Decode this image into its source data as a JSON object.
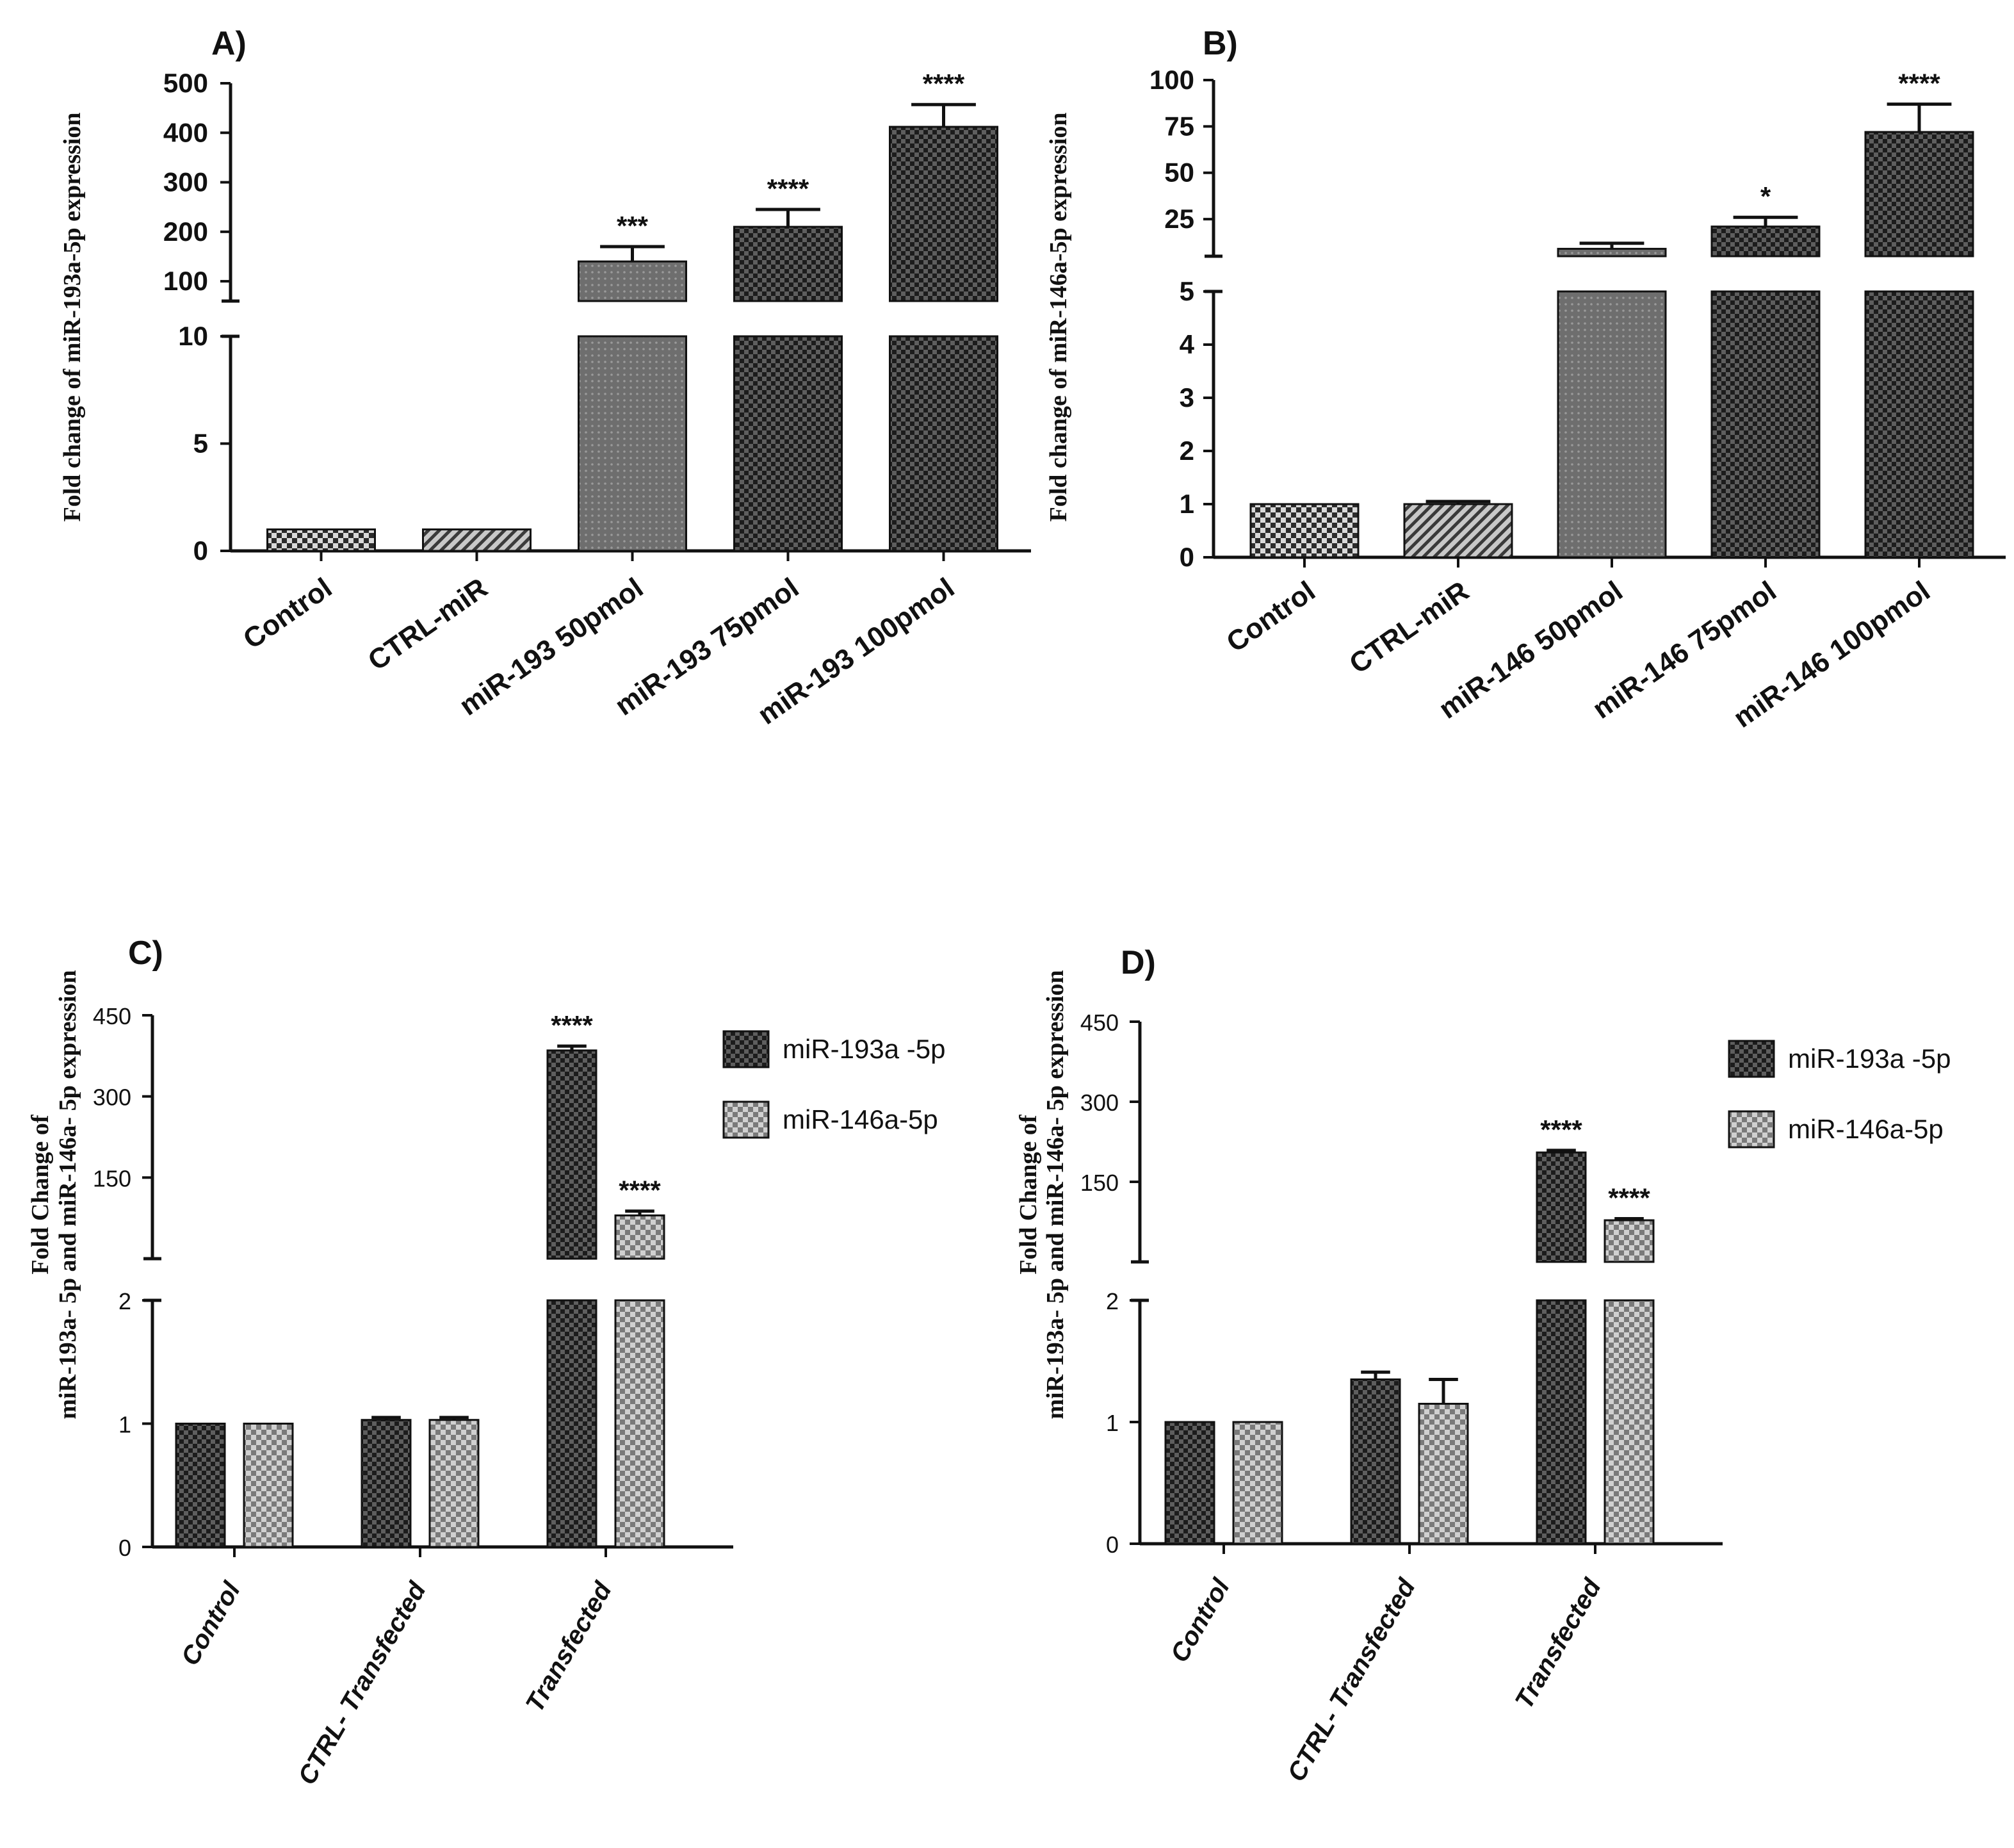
{
  "figure": {
    "panels": [
      "A)",
      "B)",
      "C)",
      "D)"
    ]
  },
  "colors": {
    "dark_bar": "#1f1f1f",
    "mid_bar": "#6a6a6a",
    "light_check": "#bdbdbd",
    "axis": "#111111"
  },
  "chart_data": [
    {
      "panel": "A)",
      "type": "bar",
      "title": "",
      "ylabel": "Fold change of miR-193a-5p expression",
      "xlabel": "",
      "categories": [
        "Control",
        "CTRL-miR",
        "miR-193 50pmol",
        "miR-193 75pmol",
        "miR-193 100pmol"
      ],
      "values": [
        1,
        1,
        140,
        210,
        412
      ],
      "errors": [
        0,
        0,
        30,
        35,
        45
      ],
      "significance": [
        "",
        "",
        "***",
        "****",
        "****"
      ],
      "patterns": [
        "check",
        "stripe",
        "dots",
        "darkcheck",
        "darkcheck"
      ],
      "axis_break": {
        "lower_ylim": [
          0,
          10
        ],
        "upper_ylim": [
          50,
          500
        ]
      },
      "lower_ticks": [
        "0",
        "5",
        "10"
      ],
      "upper_ticks": [
        "100",
        "200",
        "300",
        "400",
        "500"
      ],
      "upper_tick_values": [
        100,
        200,
        300,
        400,
        500
      ]
    },
    {
      "panel": "B)",
      "type": "bar",
      "title": "",
      "ylabel": "Fold change of miR-146a-5p expression",
      "xlabel": "",
      "categories": [
        "Control",
        "CTRL-miR",
        "miR-146 50pmol",
        "miR-146 75pmol",
        "miR-146 100pmol"
      ],
      "values": [
        1,
        1,
        9,
        21,
        72
      ],
      "errors": [
        0,
        0.05,
        3,
        5,
        15
      ],
      "significance": [
        "",
        "",
        "",
        "*",
        "****"
      ],
      "patterns": [
        "check",
        "stripe",
        "dots",
        "darkcheck",
        "darkcheck"
      ],
      "axis_break": {
        "lower_ylim": [
          0,
          5
        ],
        "upper_ylim": [
          5,
          100
        ]
      },
      "lower_ticks": [
        "0",
        "1",
        "2",
        "3",
        "4",
        "5"
      ],
      "upper_ticks": [
        "25",
        "50",
        "75",
        "100"
      ],
      "upper_tick_values": [
        25,
        50,
        75,
        100
      ]
    },
    {
      "panel": "C)",
      "type": "bar",
      "title": "",
      "ylabel_line1": "Fold Change of",
      "ylabel_line2": "miR-193a- 5p and miR-146a- 5p expression",
      "categories": [
        "Control",
        "CTRL- Transfected",
        "Transfected"
      ],
      "series": [
        {
          "name": "miR-193a -5p",
          "values": [
            1,
            1.03,
            385
          ],
          "errors": [
            0,
            0.02,
            8
          ],
          "significance": [
            "",
            "",
            "****"
          ]
        },
        {
          "name": "miR-146a-5p",
          "values": [
            1,
            1.03,
            80
          ],
          "errors": [
            0,
            0.02,
            8
          ],
          "significance": [
            "",
            "",
            "****"
          ]
        }
      ],
      "axis_break": {
        "lower_ylim": [
          0,
          2
        ],
        "upper_ylim": [
          0,
          450
        ]
      },
      "lower_ticks": [
        "0",
        "1",
        "2"
      ],
      "upper_ticks": [
        "150",
        "300",
        "450"
      ],
      "upper_tick_values": [
        150,
        300,
        450
      ],
      "legend": "right"
    },
    {
      "panel": "D)",
      "type": "bar",
      "title": "",
      "ylabel_line1": "Fold Change of",
      "ylabel_line2": "miR-193a- 5p and miR-146a- 5p expression",
      "categories": [
        "Control",
        "CTRL- Transfected",
        "Transfected"
      ],
      "series": [
        {
          "name": "miR-193a -5p",
          "values": [
            1,
            1.35,
            205
          ],
          "errors": [
            0,
            0.06,
            4
          ],
          "significance": [
            "",
            "",
            "****"
          ]
        },
        {
          "name": "miR-146a-5p",
          "values": [
            1,
            1.15,
            78
          ],
          "errors": [
            0,
            0.2,
            3
          ],
          "significance": [
            "",
            "",
            "****"
          ]
        }
      ],
      "axis_break": {
        "lower_ylim": [
          0,
          2
        ],
        "upper_ylim": [
          0,
          450
        ]
      },
      "lower_ticks": [
        "0",
        "1",
        "2"
      ],
      "upper_ticks": [
        "150",
        "300",
        "450"
      ],
      "upper_tick_values": [
        150,
        300,
        450
      ],
      "legend": "right"
    }
  ]
}
